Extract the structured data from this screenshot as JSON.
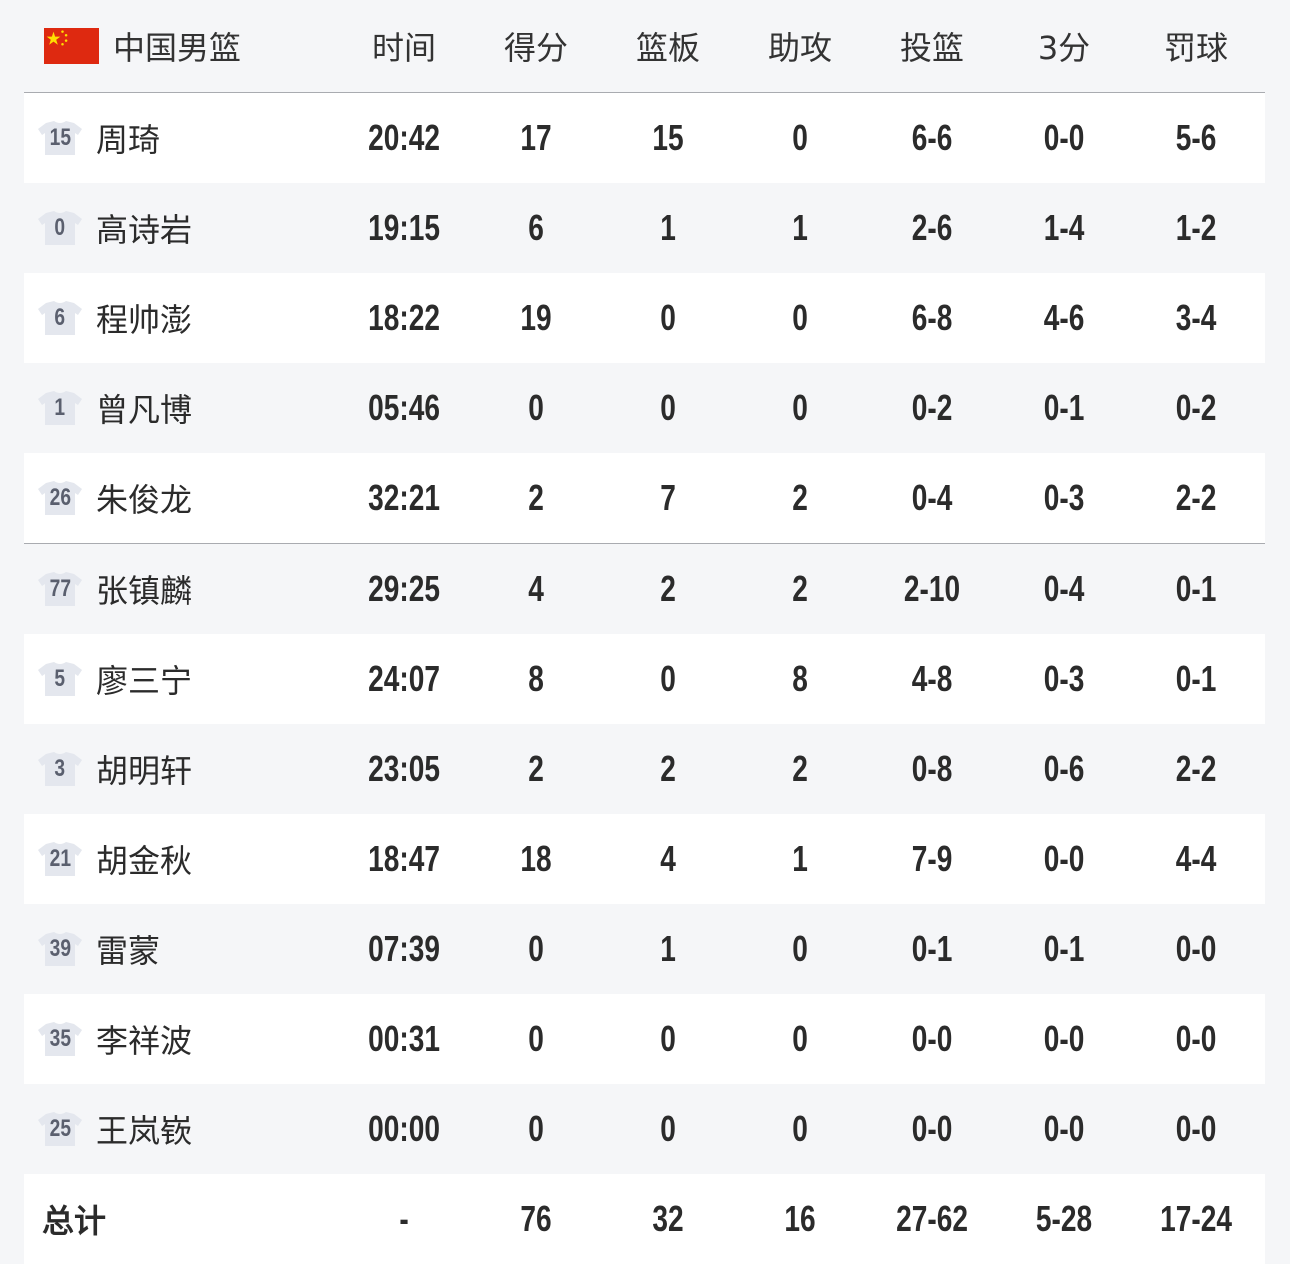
{
  "team": {
    "name": "中国男篮",
    "flag_icon": "china-flag-icon",
    "flag_color": "#de2910"
  },
  "columns": [
    "时间",
    "得分",
    "篮板",
    "助攻",
    "投篮",
    "3分",
    "罚球"
  ],
  "players": [
    {
      "number": "15",
      "name": "周琦",
      "stats": [
        "20:42",
        "17",
        "15",
        "0",
        "6-6",
        "0-0",
        "5-6"
      ]
    },
    {
      "number": "0",
      "name": "高诗岩",
      "stats": [
        "19:15",
        "6",
        "1",
        "1",
        "2-6",
        "1-4",
        "1-2"
      ]
    },
    {
      "number": "6",
      "name": "程帅澎",
      "stats": [
        "18:22",
        "19",
        "0",
        "0",
        "6-8",
        "4-6",
        "3-4"
      ]
    },
    {
      "number": "1",
      "name": "曾凡博",
      "stats": [
        "05:46",
        "0",
        "0",
        "0",
        "0-2",
        "0-1",
        "0-2"
      ]
    },
    {
      "number": "26",
      "name": "朱俊龙",
      "stats": [
        "32:21",
        "2",
        "7",
        "2",
        "0-4",
        "0-3",
        "2-2"
      ]
    },
    {
      "number": "77",
      "name": "张镇麟",
      "stats": [
        "29:25",
        "4",
        "2",
        "2",
        "2-10",
        "0-4",
        "0-1"
      ]
    },
    {
      "number": "5",
      "name": "廖三宁",
      "stats": [
        "24:07",
        "8",
        "0",
        "8",
        "4-8",
        "0-3",
        "0-1"
      ]
    },
    {
      "number": "3",
      "name": "胡明轩",
      "stats": [
        "23:05",
        "2",
        "2",
        "2",
        "0-8",
        "0-6",
        "2-2"
      ]
    },
    {
      "number": "21",
      "name": "胡金秋",
      "stats": [
        "18:47",
        "18",
        "4",
        "1",
        "7-9",
        "0-0",
        "4-4"
      ]
    },
    {
      "number": "39",
      "name": "雷蒙",
      "stats": [
        "07:39",
        "0",
        "1",
        "0",
        "0-1",
        "0-1",
        "0-0"
      ]
    },
    {
      "number": "35",
      "name": "李祥波",
      "stats": [
        "00:31",
        "0",
        "0",
        "0",
        "0-0",
        "0-0",
        "0-0"
      ]
    },
    {
      "number": "25",
      "name": "王岚嵚",
      "stats": [
        "00:00",
        "0",
        "0",
        "0",
        "0-0",
        "0-0",
        "0-0"
      ]
    }
  ],
  "totals": {
    "label": "总计",
    "stats": [
      "-",
      "76",
      "32",
      "16",
      "27-62",
      "5-28",
      "17-24"
    ]
  }
}
